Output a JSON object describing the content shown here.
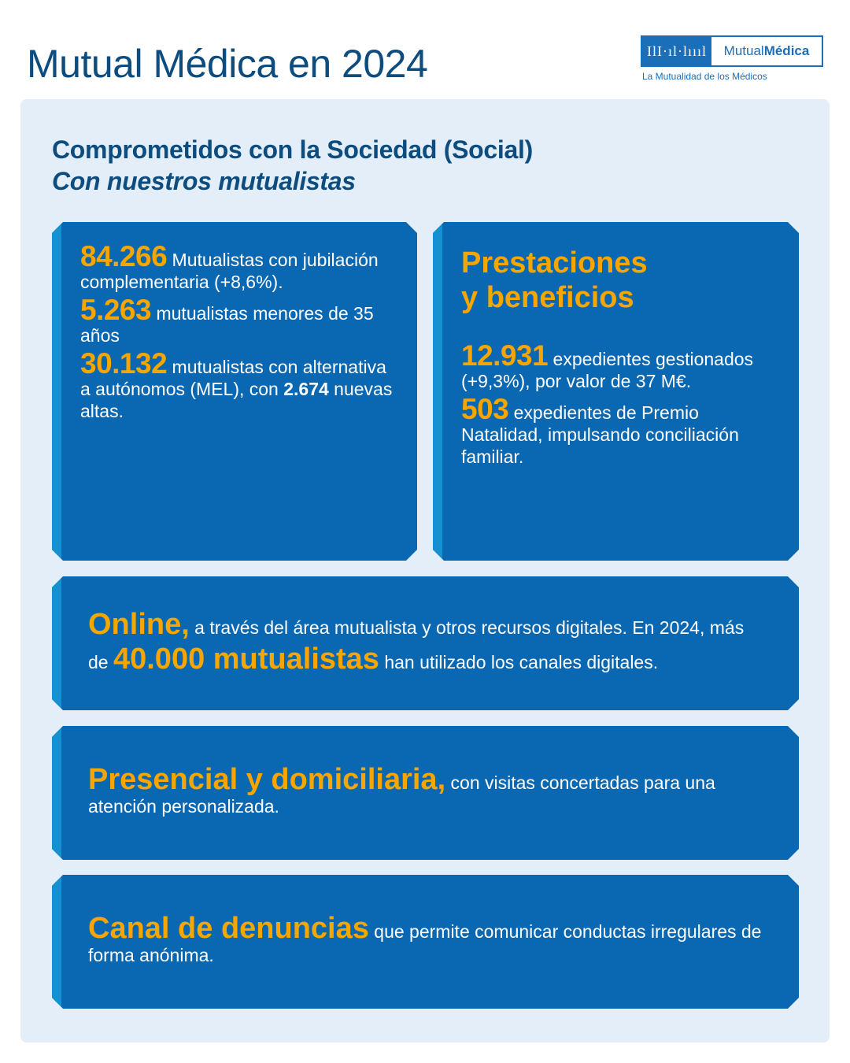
{
  "header": {
    "title": "Mutual Médica en 2024",
    "logo": {
      "name_regular": "Mutual",
      "name_bold": "Médica",
      "tagline": "La Mutualidad de los Médicos"
    }
  },
  "section": {
    "title": "Comprometidos con la Sociedad (Social)",
    "subtitle": "Con nuestros mutualistas"
  },
  "card_mutualistas": {
    "items": [
      {
        "number": "84.266",
        "text": " Mutualistas con jubilación complementaria (+8,6%)."
      },
      {
        "number": "5.263",
        "text": " mutualistas menores de 35 años"
      },
      {
        "number": "30.132",
        "text": " mutualistas con alternativa a autónomos (MEL), con ",
        "bold": "2.674",
        "text2": " nuevas altas."
      }
    ]
  },
  "card_prestaciones": {
    "title_line1": "Prestaciones",
    "title_line2": "y beneficios",
    "items": [
      {
        "number": "12.931",
        "text": " expedientes gestionados (+9,3%), por valor de 37 M€."
      },
      {
        "number": "503",
        "text": " expedientes de Premio Natalidad, impulsando conciliación familiar."
      }
    ]
  },
  "card_online": {
    "heading": "Online,",
    "text1": " a través del área mutualista y otros recursos digitales. En 2024, más de ",
    "highlight": "40.000 mutualistas",
    "text2": " han utilizado los canales digitales."
  },
  "card_presencial": {
    "heading": "Presencial y domiciliaria,",
    "text": " con visitas concertadas para una atención personalizada."
  },
  "card_canal": {
    "heading": "Canal de denuncias",
    "text": " que permite comunicar conductas irregulares de forma anónima."
  },
  "colors": {
    "brand": "#0a67b2",
    "accent": "#f7a600",
    "title": "#0d4c7f",
    "panel": "#e3eef8"
  }
}
